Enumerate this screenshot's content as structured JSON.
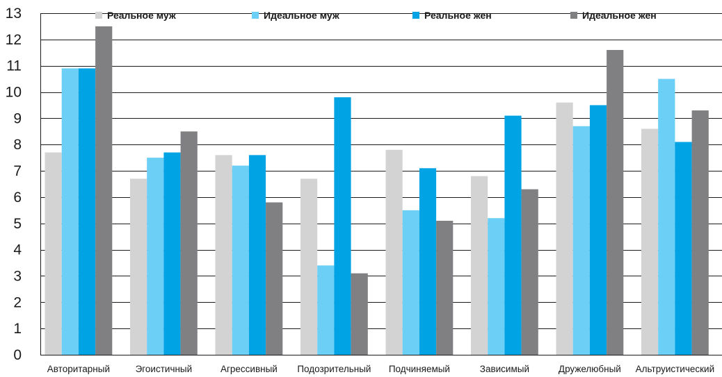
{
  "chart_data": {
    "type": "bar",
    "title": "",
    "xlabel": "",
    "ylabel": "",
    "ylim": [
      0,
      13
    ],
    "yticks": [
      0,
      1,
      2,
      3,
      4,
      5,
      6,
      7,
      8,
      9,
      10,
      11,
      12,
      13
    ],
    "grid": "horizontal",
    "legend": "top",
    "categories": [
      "Авторитарный",
      "Эгоистичный",
      "Агрессивный",
      "Подозрительный",
      "Подчиняемый",
      "Зависимый",
      "Дружелюбный",
      "Альтруистический"
    ],
    "series": [
      {
        "name": "Реальное муж",
        "color": "#d3d3d3",
        "values": [
          7.7,
          6.7,
          7.6,
          6.7,
          7.8,
          6.8,
          9.6,
          8.6
        ]
      },
      {
        "name": "Идеальное муж",
        "color": "#6ccff6",
        "values": [
          10.9,
          7.5,
          7.2,
          3.4,
          5.5,
          5.2,
          8.7,
          10.5
        ]
      },
      {
        "name": "Реальное жен",
        "color": "#00a3e4",
        "values": [
          10.9,
          7.7,
          7.6,
          9.8,
          7.1,
          9.1,
          9.5,
          8.1
        ]
      },
      {
        "name": "Идеальное жен",
        "color": "#808083",
        "values": [
          12.5,
          8.5,
          5.8,
          3.1,
          5.1,
          6.3,
          11.6,
          9.3
        ]
      }
    ]
  }
}
